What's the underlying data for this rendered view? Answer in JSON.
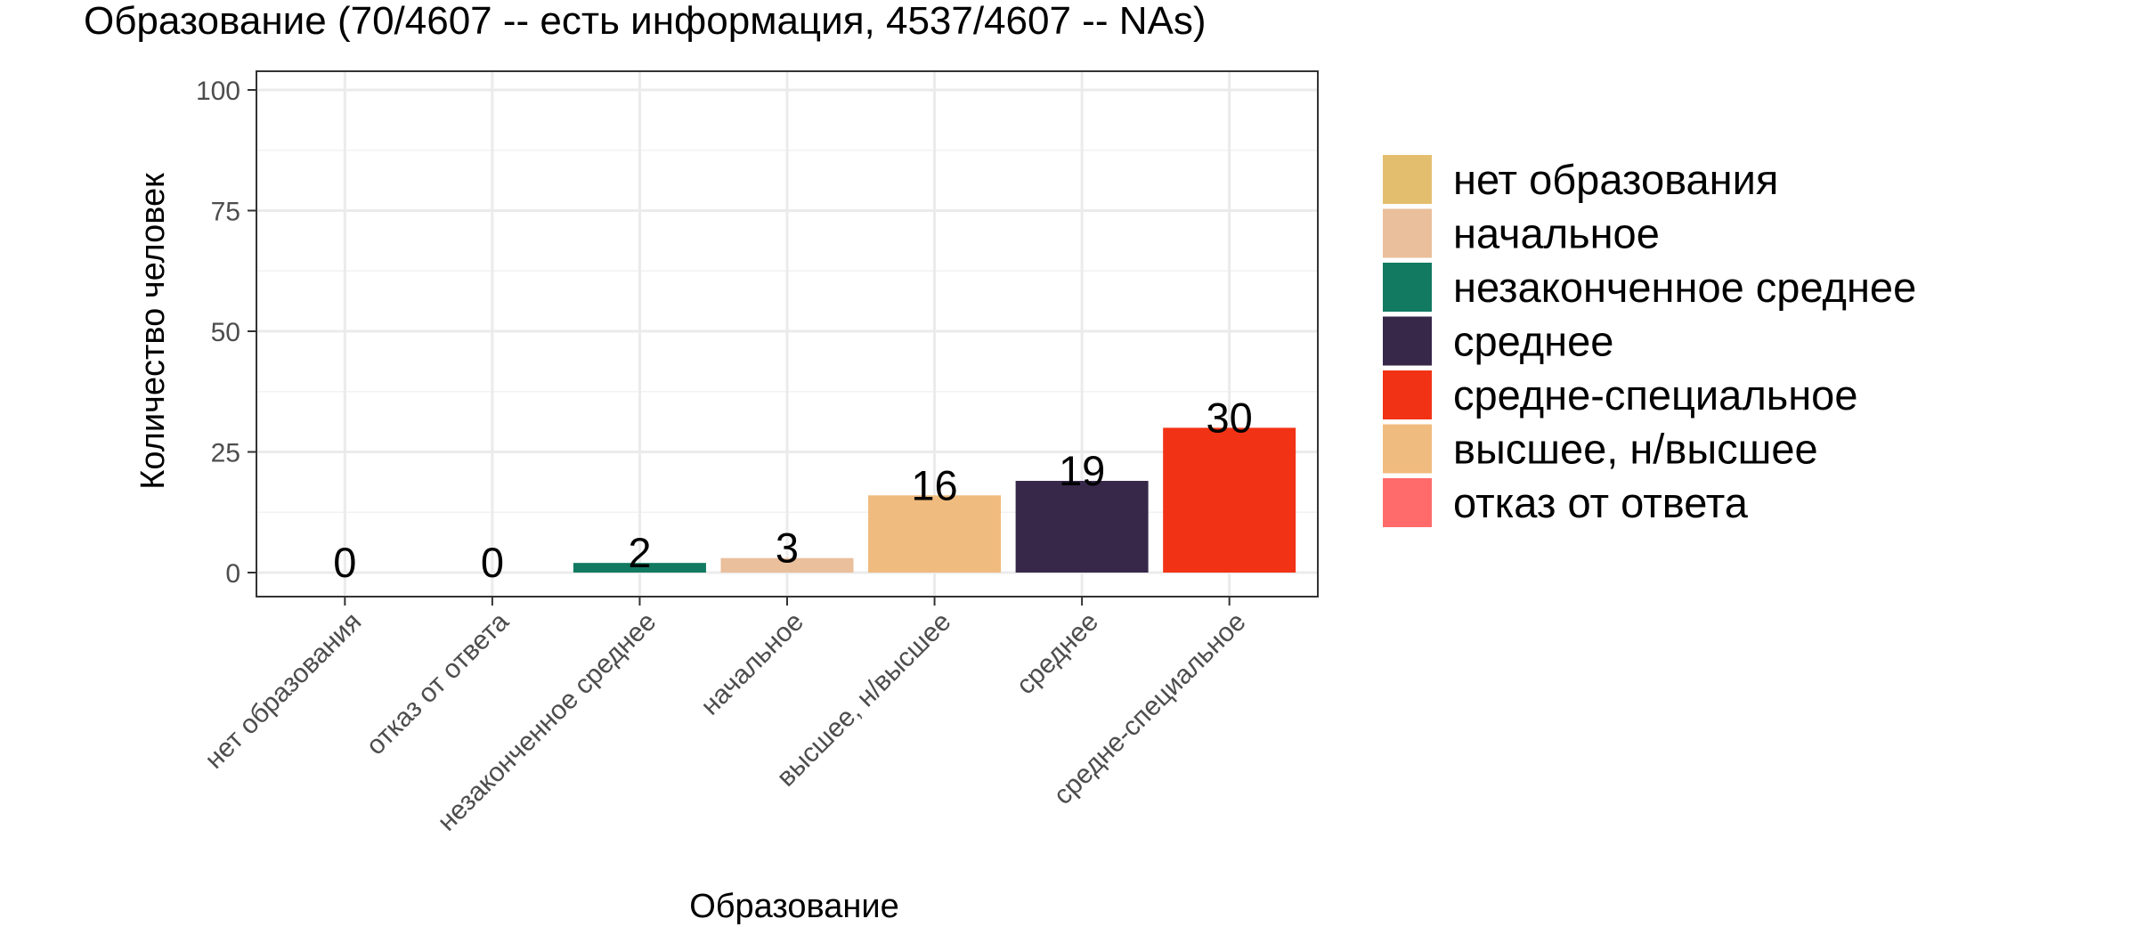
{
  "chart_data": {
    "type": "bar",
    "title": "Образование (70/4607 -- есть информация, 4537/4607 -- NAs)",
    "xlabel": "Образование",
    "ylabel": "Количество человек",
    "categories": [
      "нет образования",
      "отказ от ответа",
      "незаконченное среднее",
      "начальное",
      "высшее, н/высшее",
      "среднее",
      "средне-специальное"
    ],
    "values": [
      0,
      0,
      2,
      3,
      16,
      19,
      30
    ],
    "data_labels": [
      "0",
      "0",
      "2",
      "3",
      "16",
      "19",
      "30"
    ],
    "ylim": [
      0,
      100
    ],
    "yticks": [
      0,
      25,
      50,
      75,
      100
    ],
    "ytick_labels": [
      "0",
      "25",
      "50",
      "75",
      "100"
    ],
    "grid": true,
    "legend_position": "right",
    "legend": [
      {
        "label": "нет образования",
        "color": "#E3BE6F"
      },
      {
        "label": "начальное",
        "color": "#EABF9B"
      },
      {
        "label": "незаконченное среднее",
        "color": "#117A60"
      },
      {
        "label": "среднее",
        "color": "#37284A"
      },
      {
        "label": "средне-специальное",
        "color": "#F23215"
      },
      {
        "label": "высшее, н/высшее",
        "color": "#F0BB7E"
      },
      {
        "label": "отказ от ответа",
        "color": "#FF6B6B"
      }
    ]
  }
}
